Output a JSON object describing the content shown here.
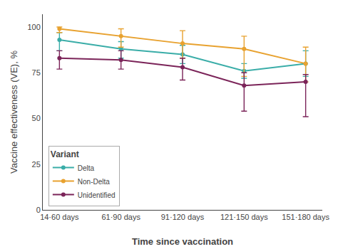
{
  "chart_data": {
    "type": "line",
    "xlabel": "Time since vaccination",
    "ylabel": "Vaccine effectiveness (VE), %",
    "categories": [
      "14·60 days",
      "61·90 days",
      "91·120 days",
      "121·150 days",
      "151·180 days"
    ],
    "series": [
      {
        "name": "Delta",
        "color": "#3aada8",
        "values": [
          93,
          88,
          85,
          76,
          80
        ],
        "lower": [
          87,
          83,
          80,
          72,
          73
        ],
        "upper": [
          97,
          92,
          90,
          80,
          87
        ]
      },
      {
        "name": "Non-Delta",
        "color": "#e8a230",
        "values": [
          99,
          95,
          91,
          88,
          80
        ],
        "lower": [
          97,
          89,
          83,
          73,
          70
        ],
        "upper": [
          100,
          99,
          98,
          95,
          89
        ]
      },
      {
        "name": "Unidentified",
        "color": "#7b2459",
        "values": [
          83,
          82,
          78,
          68,
          70
        ],
        "lower": [
          77,
          77,
          71,
          54,
          51
        ],
        "upper": [
          87,
          87,
          83,
          75,
          74
        ]
      }
    ],
    "ylim": [
      0,
      107
    ],
    "yticks": [
      0,
      25,
      50,
      75,
      100
    ],
    "grid": false,
    "legend": "lower left",
    "legend_title": "Variant",
    "marker": "circle",
    "line_style": "solid"
  }
}
